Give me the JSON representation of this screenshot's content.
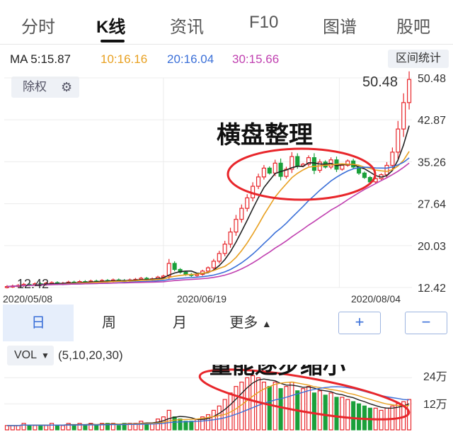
{
  "tabs": [
    {
      "label": "分时"
    },
    {
      "label": "K线"
    },
    {
      "label": "资讯"
    },
    {
      "label": "F10"
    },
    {
      "label": "图谱"
    },
    {
      "label": "股吧"
    }
  ],
  "ma_labels": {
    "ma5": "MA 5:15.87",
    "ma10": "10:16.16",
    "ma20": "20:16.04",
    "ma30": "30:15.66"
  },
  "colors": {
    "ma5": "#222222",
    "ma10": "#e8a020",
    "ma20": "#3a6fd8",
    "ma30": "#c040b0",
    "up": "#e8262b",
    "down": "#1aa03a",
    "annot": "#111111",
    "ellipse": "#e8262b"
  },
  "stat_button": "区间统计",
  "adjust_button": "除权",
  "adjust_icon": "gear-icon",
  "period_tabs": [
    {
      "label": "日"
    },
    {
      "label": "周"
    },
    {
      "label": "月"
    },
    {
      "label": "更多"
    }
  ],
  "zoom_in": "+",
  "zoom_out": "−",
  "vol_button": "VOL",
  "vol_params": "(5,10,20,30)",
  "chart_data": {
    "type": "candlestick",
    "price_axis": {
      "ticks": [
        "50.48",
        "42.87",
        "35.26",
        "27.64",
        "20.03",
        "12.42"
      ],
      "ylim": [
        12.42,
        50.48
      ]
    },
    "date_labels": [
      "2020/05/08",
      "2020/06/19",
      "2020/08/04"
    ],
    "high_label": "50.48",
    "low_label": "12.42",
    "annotation_price": "横盘整理",
    "annotation_volume": "量能逐步缩小",
    "closes": [
      12.6,
      12.7,
      12.8,
      13.0,
      12.9,
      13.1,
      13.0,
      13.2,
      13.3,
      13.1,
      13.2,
      13.4,
      13.3,
      13.5,
      13.4,
      13.6,
      13.5,
      13.7,
      13.6,
      13.8,
      13.7,
      13.6,
      13.8,
      13.9,
      14.1,
      13.9,
      14.0,
      14.3,
      14.5,
      16.8,
      15.7,
      15.2,
      14.8,
      14.6,
      14.8,
      15.4,
      16.0,
      17.2,
      18.6,
      20.3,
      22.5,
      24.8,
      26.8,
      28.7,
      30.8,
      32.5,
      34.1,
      33.2,
      35.0,
      32.6,
      33.9,
      36.2,
      34.5,
      34.8,
      36.0,
      33.7,
      35.2,
      34.3,
      35.6,
      33.9,
      34.6,
      35.4,
      34.3,
      33.2,
      32.4,
      31.6,
      32.2,
      32.9,
      34.6,
      37.0,
      41.2,
      46.0,
      50.2
    ],
    "volume_axis": {
      "ticks": [
        "24万",
        "12万"
      ],
      "max": 30
    },
    "volumes": [
      2,
      2,
      2,
      3,
      2,
      2,
      2,
      2,
      3,
      2,
      2,
      3,
      2,
      3,
      2,
      3,
      2,
      3,
      3,
      3,
      2,
      3,
      3,
      3,
      4,
      3,
      3,
      5,
      6,
      9,
      6,
      5,
      4,
      4,
      5,
      6,
      7,
      9,
      11,
      14,
      17,
      20,
      22,
      24,
      25,
      24,
      22,
      20,
      22,
      19,
      20,
      22,
      18,
      19,
      20,
      17,
      18,
      16,
      17,
      15,
      15,
      14,
      13,
      12,
      11,
      10,
      10,
      9,
      10,
      11,
      12,
      13,
      14
    ]
  }
}
